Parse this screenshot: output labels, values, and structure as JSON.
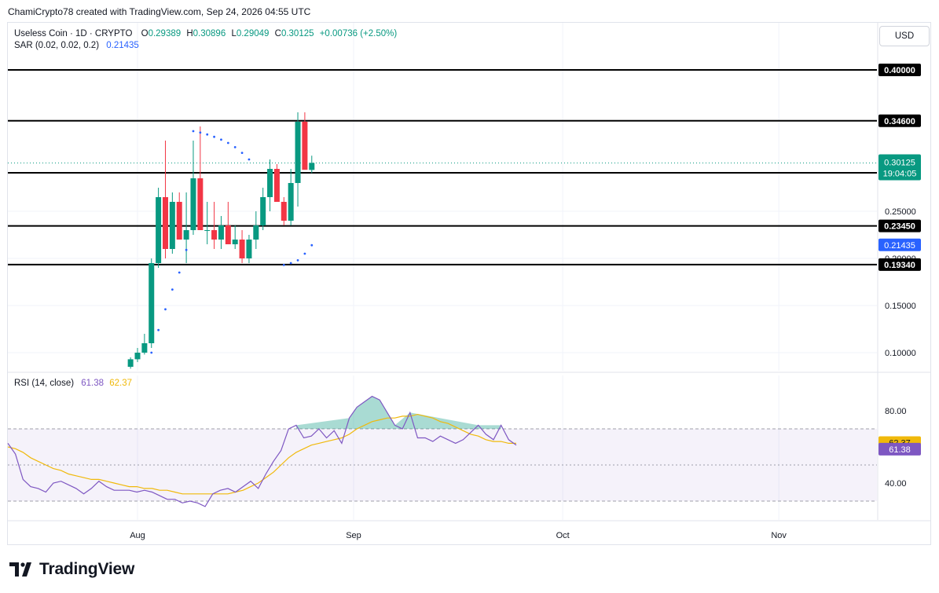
{
  "header": {
    "credit": "ChamiCrypto78 created with TradingView.com, Sep 24, 2026 04:55 UTC"
  },
  "legend": {
    "symbol": "Useless Coin · 1D · CRYPTO",
    "o_label": "O",
    "o": "0.29389",
    "h_label": "H",
    "h": "0.30896",
    "l_label": "L",
    "l": "0.29049",
    "c_label": "C",
    "c": "0.30125",
    "change": "+0.00736 (+2.50%)",
    "sar_label": "SAR (0.02, 0.02, 0.2)",
    "sar_value": "0.21435"
  },
  "rsi_legend": {
    "label": "RSI (14, close)",
    "rsi": "61.38",
    "ma": "62.37"
  },
  "toolbar": {
    "currency": "USD"
  },
  "brand": {
    "name": "TradingView"
  },
  "colors": {
    "up": "#089981",
    "down": "#f23645",
    "sar": "#2962ff",
    "rsi": "#7e57c2",
    "rsi_ma": "#f0b90b",
    "level_line": "#000000",
    "price_tag": "#089981",
    "sar_tag": "#2962ff"
  },
  "chart_data": [
    {
      "type": "candlestick",
      "title": "Useless Coin · 1D · CRYPTO",
      "y_scale": "linear",
      "ylim": [
        0.072,
        0.36
      ],
      "x_ticks": [
        {
          "label": "Aug",
          "date": "2026-08-01"
        },
        {
          "label": "Sep",
          "date": "2026-09-01"
        },
        {
          "label": "Oct",
          "date": "2026-10-01"
        },
        {
          "label": "Nov",
          "date": "2026-11-01"
        }
      ],
      "y_ticks": [
        "0.10000",
        "0.15000",
        "0.25000"
      ],
      "grid": true,
      "horizontal_levels": [
        "0.40000",
        "0.34600",
        "0.29083",
        "0.23450",
        "0.19340"
      ],
      "last_price": {
        "value": "0.30125",
        "countdown": "19:04:05"
      },
      "sar_tag": "0.21435",
      "hidden_tick": "0.20000",
      "candles": [
        {
          "date": "2026-07-01",
          "o": 0.089,
          "h": 0.092,
          "l": 0.086,
          "c": 0.09
        },
        {
          "date": "2026-07-02",
          "o": 0.09,
          "h": 0.091,
          "l": 0.085,
          "c": 0.086
        },
        {
          "date": "2026-07-03",
          "o": 0.086,
          "h": 0.09,
          "l": 0.0855,
          "c": 0.0885
        },
        {
          "date": "2026-07-04",
          "o": 0.0885,
          "h": 0.089,
          "l": 0.084,
          "c": 0.085
        },
        {
          "date": "2026-07-31",
          "o": 0.085,
          "h": 0.095,
          "l": 0.083,
          "c": 0.093
        },
        {
          "date": "2026-08-01",
          "o": 0.093,
          "h": 0.105,
          "l": 0.09,
          "c": 0.1
        },
        {
          "date": "2026-08-02",
          "o": 0.1,
          "h": 0.12,
          "l": 0.098,
          "c": 0.11
        },
        {
          "date": "2026-08-03",
          "o": 0.11,
          "h": 0.2,
          "l": 0.105,
          "c": 0.195
        },
        {
          "date": "2026-08-04",
          "o": 0.195,
          "h": 0.275,
          "l": 0.19,
          "c": 0.265
        },
        {
          "date": "2026-08-05",
          "o": 0.265,
          "h": 0.325,
          "l": 0.2,
          "c": 0.21
        },
        {
          "date": "2026-08-06",
          "o": 0.21,
          "h": 0.27,
          "l": 0.205,
          "c": 0.26
        },
        {
          "date": "2026-08-07",
          "o": 0.26,
          "h": 0.27,
          "l": 0.22,
          "c": 0.22
        },
        {
          "date": "2026-08-08",
          "o": 0.22,
          "h": 0.27,
          "l": 0.195,
          "c": 0.23
        },
        {
          "date": "2026-08-09",
          "o": 0.23,
          "h": 0.325,
          "l": 0.225,
          "c": 0.285
        },
        {
          "date": "2026-08-10",
          "o": 0.285,
          "h": 0.34,
          "l": 0.23,
          "c": 0.23
        },
        {
          "date": "2026-08-11",
          "o": 0.23,
          "h": 0.26,
          "l": 0.215,
          "c": 0.23
        },
        {
          "date": "2026-08-12",
          "o": 0.23,
          "h": 0.26,
          "l": 0.21,
          "c": 0.22
        },
        {
          "date": "2026-08-13",
          "o": 0.22,
          "h": 0.245,
          "l": 0.21,
          "c": 0.235
        },
        {
          "date": "2026-08-14",
          "o": 0.235,
          "h": 0.26,
          "l": 0.215,
          "c": 0.215
        },
        {
          "date": "2026-08-15",
          "o": 0.215,
          "h": 0.235,
          "l": 0.21,
          "c": 0.22
        },
        {
          "date": "2026-08-16",
          "o": 0.22,
          "h": 0.23,
          "l": 0.195,
          "c": 0.2
        },
        {
          "date": "2026-08-17",
          "o": 0.2,
          "h": 0.225,
          "l": 0.195,
          "c": 0.22
        },
        {
          "date": "2026-08-18",
          "o": 0.22,
          "h": 0.25,
          "l": 0.21,
          "c": 0.235
        },
        {
          "date": "2026-08-19",
          "o": 0.235,
          "h": 0.275,
          "l": 0.23,
          "c": 0.265
        },
        {
          "date": "2026-08-20",
          "o": 0.265,
          "h": 0.305,
          "l": 0.25,
          "c": 0.295
        },
        {
          "date": "2026-08-21",
          "o": 0.295,
          "h": 0.3,
          "l": 0.26,
          "c": 0.26
        },
        {
          "date": "2026-08-22",
          "o": 0.26,
          "h": 0.265,
          "l": 0.235,
          "c": 0.24
        },
        {
          "date": "2026-08-23",
          "o": 0.24,
          "h": 0.295,
          "l": 0.235,
          "c": 0.28
        },
        {
          "date": "2026-08-24",
          "o": 0.28,
          "h": 0.355,
          "l": 0.255,
          "c": 0.345
        },
        {
          "date": "2026-08-25",
          "o": 0.345,
          "h": 0.355,
          "l": 0.295,
          "c": 0.294
        },
        {
          "date": "2026-08-26",
          "o": 0.2939,
          "h": 0.309,
          "l": 0.2905,
          "c": 0.3013
        }
      ],
      "sar": [
        {
          "date": "2026-07-01",
          "v": 0.1
        },
        {
          "date": "2026-07-02",
          "v": 0.0995
        },
        {
          "date": "2026-07-03",
          "v": 0.099
        },
        {
          "date": "2026-07-04",
          "v": 0.098
        },
        {
          "date": "2026-07-05",
          "v": 0.0965
        },
        {
          "date": "2026-07-06",
          "v": 0.0945
        },
        {
          "date": "2026-07-07",
          "v": 0.0925
        },
        {
          "date": "2026-07-08",
          "v": 0.0905
        },
        {
          "date": "2026-08-03",
          "v": 0.1
        },
        {
          "date": "2026-08-04",
          "v": 0.124
        },
        {
          "date": "2026-08-05",
          "v": 0.146
        },
        {
          "date": "2026-08-06",
          "v": 0.167
        },
        {
          "date": "2026-08-07",
          "v": 0.185
        },
        {
          "date": "2026-08-08",
          "v": 0.209
        },
        {
          "date": "2026-08-09",
          "v": 0.335
        },
        {
          "date": "2026-08-10",
          "v": 0.3335
        },
        {
          "date": "2026-08-11",
          "v": 0.3315
        },
        {
          "date": "2026-08-12",
          "v": 0.329
        },
        {
          "date": "2026-08-13",
          "v": 0.326
        },
        {
          "date": "2026-08-14",
          "v": 0.3225
        },
        {
          "date": "2026-08-15",
          "v": 0.318
        },
        {
          "date": "2026-08-16",
          "v": 0.312
        },
        {
          "date": "2026-08-17",
          "v": 0.305
        },
        {
          "date": "2026-08-22",
          "v": 0.193
        },
        {
          "date": "2026-08-23",
          "v": 0.195
        },
        {
          "date": "2026-08-24",
          "v": 0.198
        },
        {
          "date": "2026-08-25",
          "v": 0.205
        },
        {
          "date": "2026-08-26",
          "v": 0.214
        }
      ]
    },
    {
      "type": "line",
      "title": "RSI (14, close)",
      "ylim": [
        28,
        98
      ],
      "y_ticks": [
        "80.00",
        "40.00"
      ],
      "bands": [
        30,
        50,
        70
      ],
      "last_values": {
        "rsi": "61.38",
        "ma": "62.37"
      },
      "series": [
        {
          "name": "RSI",
          "values": [
            62,
            56,
            42,
            38,
            37,
            35,
            40,
            41,
            39,
            37,
            34,
            37,
            41,
            38,
            36,
            36,
            36,
            35,
            36,
            35,
            33,
            31,
            31,
            29,
            30,
            29,
            27,
            34,
            36,
            37,
            35,
            38,
            41,
            37,
            45,
            52,
            58,
            70,
            72,
            65,
            66,
            70,
            65,
            69,
            62,
            76,
            82,
            85,
            88,
            86,
            79,
            72,
            70,
            79,
            65,
            65,
            63,
            66,
            64,
            62,
            64,
            68,
            72,
            67,
            64,
            72,
            64,
            61
          ]
        },
        {
          "name": "MA",
          "values": [
            60,
            59,
            57,
            54,
            52,
            50,
            48,
            47,
            45,
            44,
            43,
            42,
            42,
            41,
            40,
            39,
            38,
            38,
            37,
            37,
            36,
            36,
            35,
            34,
            34,
            34,
            34,
            34,
            34,
            34,
            35,
            36,
            38,
            40,
            43,
            46,
            50,
            54,
            57,
            59,
            61,
            62,
            63,
            64,
            65,
            67,
            70,
            72,
            74,
            75,
            76,
            76,
            77,
            77,
            78,
            77,
            76,
            74,
            73,
            71,
            69,
            67,
            66,
            64,
            63,
            63,
            62,
            62
          ]
        }
      ]
    }
  ]
}
